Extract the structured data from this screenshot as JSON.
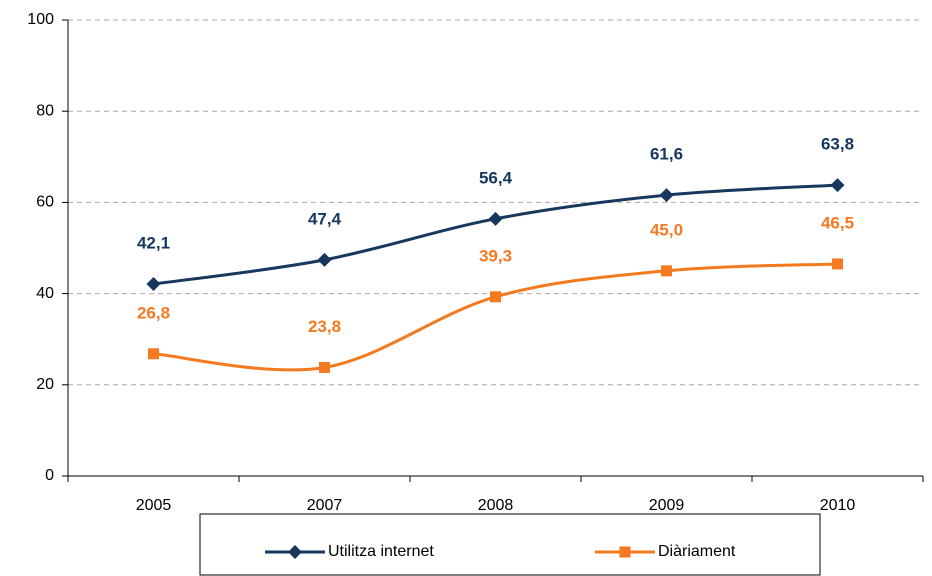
{
  "chart_data": {
    "type": "line",
    "categories": [
      "2005",
      "2007",
      "2008",
      "2009",
      "2010"
    ],
    "series": [
      {
        "name": "Utilitza internet",
        "color": "#17375e",
        "marker": "diamond",
        "values": [
          42.1,
          47.4,
          56.4,
          61.6,
          63.8
        ],
        "value_labels": [
          "42,1",
          "47,4",
          "56,4",
          "61,6",
          "63,8"
        ]
      },
      {
        "name": "Diàriament",
        "color": "#f57a1f",
        "marker": "square",
        "values": [
          26.8,
          23.8,
          39.3,
          45.0,
          46.5
        ],
        "value_labels": [
          "26,8",
          "23,8",
          "39,3",
          "45,0",
          "46,5"
        ]
      }
    ],
    "ylim": [
      0,
      100
    ],
    "yticks": [
      0,
      20,
      40,
      60,
      80,
      100
    ],
    "grid": true,
    "legend": "bottom"
  }
}
